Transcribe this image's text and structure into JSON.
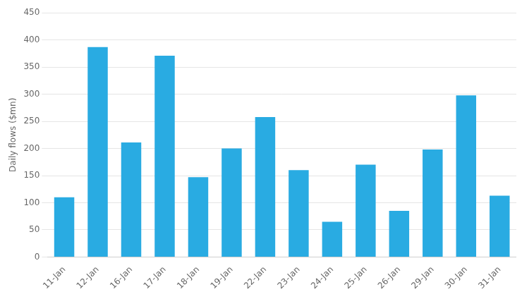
{
  "chart_data": {
    "type": "bar",
    "categories": [
      "11-Jan",
      "12-Jan",
      "16-Jan",
      "17-Jan",
      "18-Jan",
      "19-Jan",
      "22-Jan",
      "23-Jan",
      "24-Jan",
      "25-Jan",
      "26-Jan",
      "29-Jan",
      "30-Jan",
      "31-Jan"
    ],
    "values": [
      110,
      387,
      211,
      371,
      147,
      200,
      258,
      160,
      65,
      170,
      85,
      198,
      298,
      113
    ],
    "color": "#29ABE2",
    "ylabel": "Daily flows ($mn)",
    "ylim": [
      0,
      450
    ],
    "yticks": [
      0,
      50,
      100,
      150,
      200,
      250,
      300,
      350,
      400,
      450
    ],
    "grid": true
  }
}
